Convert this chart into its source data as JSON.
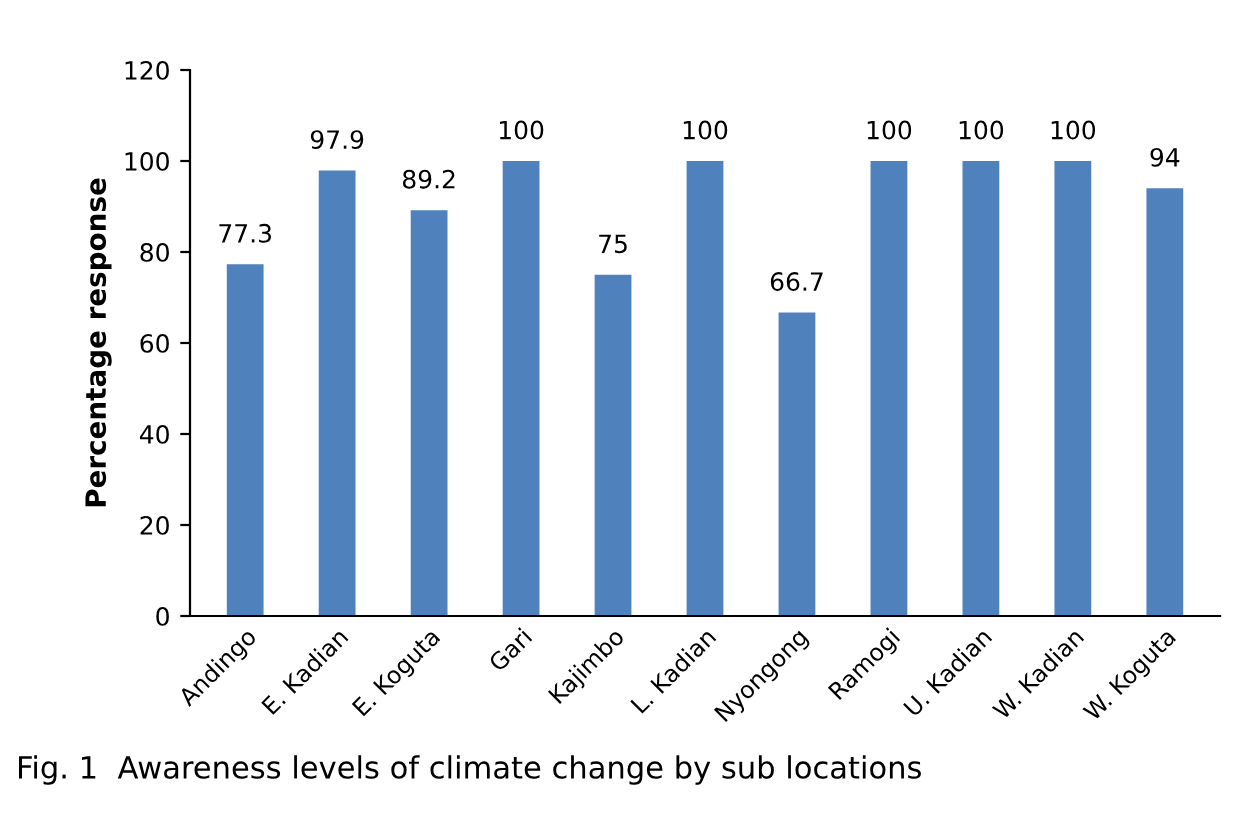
{
  "chart_data": {
    "type": "bar",
    "categories": [
      "Andingo",
      "E. Kadian",
      "E. Koguta",
      "Gari",
      "Kajimbo",
      "L. Kadian",
      "Nyongong",
      "Ramogi",
      "U. Kadian",
      "W. Kadian",
      "W. Koguta"
    ],
    "values": [
      77.3,
      97.9,
      89.2,
      100,
      75,
      100,
      66.7,
      100,
      100,
      100,
      94
    ],
    "color": "#4f81bd",
    "ylabel": "Percentage response",
    "ylim": [
      0,
      120
    ],
    "yticks": [
      0,
      20,
      40,
      60,
      80,
      100,
      120
    ],
    "data_labels": true,
    "annotations": [
      "Fig. 1  Awareness levels of climate change by sub locations"
    ]
  }
}
